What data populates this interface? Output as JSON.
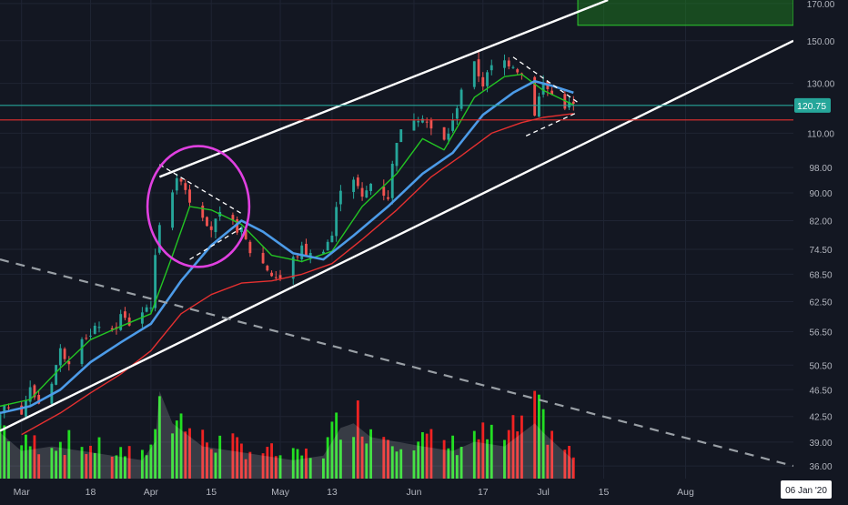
{
  "chart_data": {
    "type": "candlestick",
    "x_axis": {
      "scale": "date",
      "tick_labels": [
        "Mar",
        "18",
        "Apr",
        "15",
        "May",
        "13",
        "Jun",
        "17",
        "Jul",
        "15",
        "Aug"
      ],
      "tick_dates": [
        "2020-03-02",
        "2020-03-18",
        "2020-04-01",
        "2020-04-15",
        "2020-05-01",
        "2020-05-13",
        "2020-06-01",
        "2020-06-17",
        "2020-07-01",
        "2020-07-15",
        "2020-08-03"
      ],
      "range": [
        "2020-02-26",
        "2020-08-28"
      ],
      "cursor_label": "06 Jan '20"
    },
    "y_axis": {
      "scale": "log",
      "range": [
        34.5,
        172
      ],
      "tick_labels": [
        "170.00",
        "150.00",
        "130.00",
        "120.75",
        "110.00",
        "98.00",
        "90.00",
        "82.00",
        "74.50",
        "68.50",
        "62.50",
        "56.50",
        "50.50",
        "46.50",
        "42.50",
        "39.00",
        "36.00"
      ],
      "ticks": [
        170,
        150,
        130,
        110,
        98,
        90,
        82,
        74.5,
        68.5,
        62.5,
        56.5,
        50.5,
        46.5,
        42.5,
        39,
        36
      ],
      "last_price": 120.75,
      "last_price_color": "#26a69a"
    },
    "grid": true,
    "legend": "none",
    "colors": {
      "background": "#131722",
      "up": "#26a69a",
      "down": "#ef5350",
      "volume_up": "#22dd22",
      "volume_down": "#ee2222",
      "ma_fast": "#23c523",
      "ma_mid": "#4c9be8",
      "ma_slow": "#e53030",
      "trendline": "#ffffff",
      "dashed_trendline": "#9aa0a6",
      "circle": "#e040e0",
      "horizontal_level": "#e53030",
      "target_zone": "#1e8a1e"
    },
    "series": [
      {
        "name": "price",
        "kind": "candlestick",
        "ohlc_anchors": [
          [
            "2020-02-26",
            42.5
          ],
          [
            "2020-02-28",
            44.2
          ],
          [
            "2020-03-02",
            43.5
          ],
          [
            "2020-03-04",
            46.5
          ],
          [
            "2020-03-06",
            44.5
          ],
          [
            "2020-03-09",
            48
          ],
          [
            "2020-03-11",
            53
          ],
          [
            "2020-03-13",
            51.5
          ],
          [
            "2020-03-16",
            56
          ],
          [
            "2020-03-18",
            55.5
          ],
          [
            "2020-03-20",
            58
          ],
          [
            "2020-03-23",
            56
          ],
          [
            "2020-03-25",
            59.5
          ],
          [
            "2020-03-27",
            58
          ],
          [
            "2020-03-30",
            60.5
          ],
          [
            "2020-04-01",
            62
          ],
          [
            "2020-04-03",
            82
          ],
          [
            "2020-04-06",
            91
          ],
          [
            "2020-04-08",
            95
          ],
          [
            "2020-04-10",
            88
          ],
          [
            "2020-04-13",
            84
          ],
          [
            "2020-04-15",
            80
          ],
          [
            "2020-04-17",
            83
          ],
          [
            "2020-04-20",
            81
          ],
          [
            "2020-04-22",
            79
          ],
          [
            "2020-04-24",
            74
          ],
          [
            "2020-04-27",
            71
          ],
          [
            "2020-04-29",
            68.5
          ],
          [
            "2020-05-01",
            67.5
          ],
          [
            "2020-05-04",
            72
          ],
          [
            "2020-05-06",
            74.5
          ],
          [
            "2020-05-08",
            73
          ],
          [
            "2020-05-11",
            75
          ],
          [
            "2020-05-13",
            78
          ],
          [
            "2020-05-15",
            92
          ],
          [
            "2020-05-18",
            95
          ],
          [
            "2020-05-20",
            88
          ],
          [
            "2020-05-22",
            93
          ],
          [
            "2020-05-26",
            89
          ],
          [
            "2020-05-28",
            108
          ],
          [
            "2020-06-01",
            116
          ],
          [
            "2020-06-03",
            117
          ],
          [
            "2020-06-05",
            111
          ],
          [
            "2020-06-08",
            107
          ],
          [
            "2020-06-10",
            114
          ],
          [
            "2020-06-12",
            128
          ],
          [
            "2020-06-15",
            138
          ],
          [
            "2020-06-17",
            130
          ],
          [
            "2020-06-19",
            137
          ],
          [
            "2020-06-22",
            140
          ],
          [
            "2020-06-24",
            139
          ],
          [
            "2020-06-26",
            134
          ],
          [
            "2020-06-29",
            118
          ],
          [
            "2020-07-01",
            130
          ],
          [
            "2020-07-03",
            125
          ],
          [
            "2020-07-06",
            121
          ],
          [
            "2020-07-08",
            120.75
          ]
        ]
      },
      {
        "name": "fast MA",
        "kind": "line",
        "points": [
          [
            "2020-02-26",
            44
          ],
          [
            "2020-03-04",
            45
          ],
          [
            "2020-03-11",
            50
          ],
          [
            "2020-03-18",
            55
          ],
          [
            "2020-03-25",
            57.5
          ],
          [
            "2020-04-01",
            60
          ],
          [
            "2020-04-06",
            73
          ],
          [
            "2020-04-10",
            86
          ],
          [
            "2020-04-15",
            85
          ],
          [
            "2020-04-22",
            81
          ],
          [
            "2020-04-29",
            73
          ],
          [
            "2020-05-06",
            71.5
          ],
          [
            "2020-05-13",
            74
          ],
          [
            "2020-05-20",
            86
          ],
          [
            "2020-05-28",
            96
          ],
          [
            "2020-06-03",
            108
          ],
          [
            "2020-06-08",
            104
          ],
          [
            "2020-06-15",
            124
          ],
          [
            "2020-06-22",
            133
          ],
          [
            "2020-06-26",
            134
          ],
          [
            "2020-07-01",
            127
          ],
          [
            "2020-07-08",
            121
          ]
        ]
      },
      {
        "name": "mid MA",
        "kind": "line",
        "points": [
          [
            "2020-02-26",
            43
          ],
          [
            "2020-03-04",
            44
          ],
          [
            "2020-03-11",
            46.5
          ],
          [
            "2020-03-18",
            51
          ],
          [
            "2020-03-25",
            54.5
          ],
          [
            "2020-04-01",
            58
          ],
          [
            "2020-04-08",
            67
          ],
          [
            "2020-04-15",
            75.5
          ],
          [
            "2020-04-22",
            82
          ],
          [
            "2020-04-27",
            79
          ],
          [
            "2020-05-04",
            73.5
          ],
          [
            "2020-05-11",
            72
          ],
          [
            "2020-05-18",
            78
          ],
          [
            "2020-05-26",
            86
          ],
          [
            "2020-06-03",
            96
          ],
          [
            "2020-06-10",
            103
          ],
          [
            "2020-06-17",
            117
          ],
          [
            "2020-06-24",
            126
          ],
          [
            "2020-06-29",
            131
          ],
          [
            "2020-07-03",
            129
          ],
          [
            "2020-07-08",
            126
          ]
        ]
      },
      {
        "name": "slow MA",
        "kind": "line",
        "points": [
          [
            "2020-03-02",
            40
          ],
          [
            "2020-03-11",
            43
          ],
          [
            "2020-03-18",
            46
          ],
          [
            "2020-03-25",
            49
          ],
          [
            "2020-04-01",
            53
          ],
          [
            "2020-04-08",
            60
          ],
          [
            "2020-04-15",
            64
          ],
          [
            "2020-04-22",
            66.5
          ],
          [
            "2020-04-29",
            67
          ],
          [
            "2020-05-06",
            68.5
          ],
          [
            "2020-05-13",
            71
          ],
          [
            "2020-05-20",
            77
          ],
          [
            "2020-05-28",
            85
          ],
          [
            "2020-06-05",
            95
          ],
          [
            "2020-06-12",
            102
          ],
          [
            "2020-06-19",
            110
          ],
          [
            "2020-06-26",
            114
          ],
          [
            "2020-07-01",
            116
          ],
          [
            "2020-07-08",
            117.5
          ]
        ]
      }
    ],
    "volume_anchors": [
      [
        "2020-02-26",
        0.5
      ],
      [
        "2020-03-02",
        0.3
      ],
      [
        "2020-03-09",
        0.35
      ],
      [
        "2020-03-16",
        0.3
      ],
      [
        "2020-03-23",
        0.25
      ],
      [
        "2020-03-30",
        0.2
      ],
      [
        "2020-04-02",
        0.4
      ],
      [
        "2020-04-03",
        0.95
      ],
      [
        "2020-04-06",
        0.6
      ],
      [
        "2020-04-13",
        0.35
      ],
      [
        "2020-04-20",
        0.3
      ],
      [
        "2020-04-27",
        0.25
      ],
      [
        "2020-05-04",
        0.2
      ],
      [
        "2020-05-11",
        0.25
      ],
      [
        "2020-05-15",
        0.55
      ],
      [
        "2020-05-18",
        0.6
      ],
      [
        "2020-05-22",
        0.45
      ],
      [
        "2020-05-28",
        0.4
      ],
      [
        "2020-06-03",
        0.35
      ],
      [
        "2020-06-10",
        0.3
      ],
      [
        "2020-06-15",
        0.4
      ],
      [
        "2020-06-22",
        0.35
      ],
      [
        "2020-06-29",
        0.6
      ],
      [
        "2020-07-01",
        0.5
      ],
      [
        "2020-07-08",
        0.2
      ]
    ],
    "annotations": [
      {
        "kind": "trendline",
        "from": [
          "2020-04-03",
          95
        ],
        "to": [
          "2020-07-16",
          172
        ],
        "color": "#ffffff"
      },
      {
        "kind": "trendline",
        "from": [
          "2020-02-26",
          40.5
        ],
        "to": [
          "2020-08-28",
          150
        ],
        "color": "#ffffff"
      },
      {
        "kind": "dashed_trendline",
        "from": [
          "2020-02-26",
          72
        ],
        "to": [
          "2020-08-28",
          36
        ],
        "color": "#9aa0a6"
      },
      {
        "kind": "horizontal",
        "price": 115,
        "color": "#e53030"
      },
      {
        "kind": "horizontal",
        "price": 120.75,
        "color": "#26a69a"
      },
      {
        "kind": "triangle",
        "points": [
          [
            "2020-06-24",
            142
          ],
          [
            "2020-07-09",
            122
          ],
          [
            "2020-06-27",
            109
          ],
          [
            "2020-07-09",
            118
          ]
        ]
      },
      {
        "kind": "flag",
        "points": [
          [
            "2020-04-03",
            99
          ],
          [
            "2020-04-22",
            84
          ],
          [
            "2020-04-10",
            72
          ],
          [
            "2020-04-22",
            80
          ]
        ]
      },
      {
        "kind": "circle",
        "center": [
          "2020-04-12",
          86
        ],
        "color": "#e040e0"
      },
      {
        "kind": "target_zone",
        "from": [
          "2020-07-09",
          158
        ],
        "to": [
          "2020-08-28",
          180
        ],
        "color": "#1e8a1e"
      }
    ]
  }
}
